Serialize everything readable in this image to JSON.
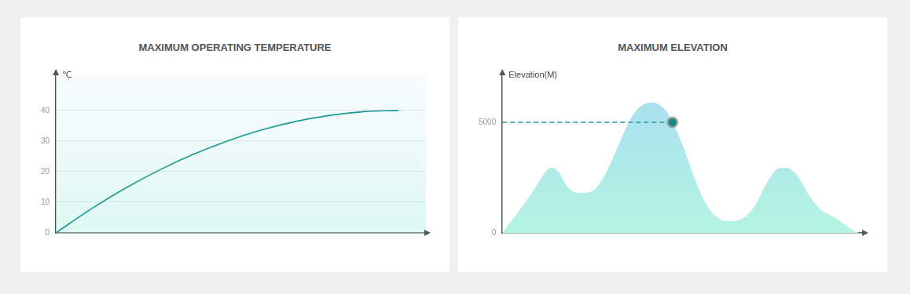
{
  "chart_data": [
    {
      "type": "line",
      "title": "MAXIMUM OPERATING TEMPERATURE",
      "y_label": "℃",
      "x": [
        0,
        1,
        2,
        3,
        4,
        5,
        6,
        7,
        8,
        9,
        10
      ],
      "values": [
        0,
        7.6,
        14.4,
        20.4,
        25.6,
        30,
        33.6,
        36.4,
        38.4,
        39.6,
        40
      ],
      "color": "#1a9a96",
      "xlim": [
        0,
        10.8
      ],
      "ylim": [
        0,
        52
      ],
      "yticks": [
        0,
        10,
        20,
        30,
        40
      ],
      "grid": true,
      "tick_labels": "y"
    },
    {
      "type": "area",
      "title": "MAXIMUM ELEVATION",
      "y_label": "Elevation(M)",
      "x": [
        0,
        2.8,
        6,
        9.3,
        11.9,
        13.6,
        15.8,
        17.9,
        21.2,
        24.4,
        27.6,
        30.9,
        34.1,
        37.4,
        41.3,
        44.9,
        47.1,
        50.3,
        53.6,
        56.8,
        60,
        63.3,
        66.5,
        69.8,
        73,
        76.2,
        78.4,
        81.6,
        84.9,
        88.1,
        91.4,
        94.6,
        97.8,
        98.9
      ],
      "values": [
        0,
        600,
        1300,
        2100,
        2750,
        2950,
        2700,
        2100,
        1800,
        1850,
        2400,
        3500,
        4700,
        5600,
        5900,
        5600,
        5000,
        3800,
        2300,
        1200,
        650,
        530,
        650,
        1200,
        2200,
        2900,
        2950,
        2600,
        1700,
        1050,
        750,
        400,
        50,
        0
      ],
      "color": "#a9dcf2",
      "xlim": [
        0,
        100
      ],
      "ylim": [
        0,
        7200
      ],
      "yticks": [
        0,
        5000
      ],
      "grid": false,
      "tick_labels": "y",
      "highlight": {
        "x": 47.1,
        "y": 5000
      }
    }
  ]
}
